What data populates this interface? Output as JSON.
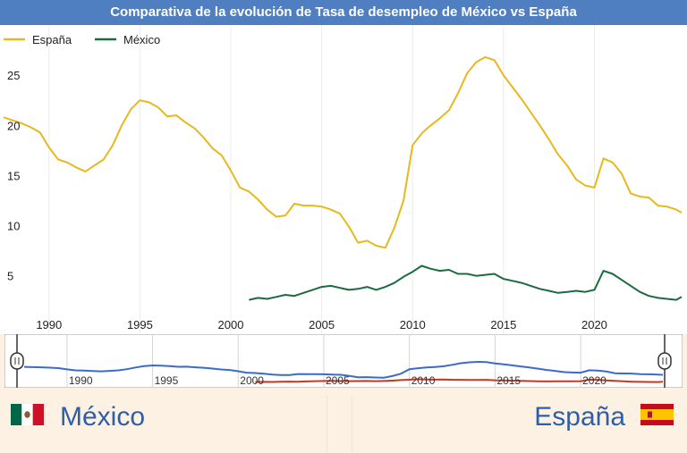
{
  "title": "Comparativa de la evolución de Tasa de desempleo de México vs España",
  "colors": {
    "spain": "#e6b91e",
    "mexico": "#1b6b3f",
    "nav_spain": "#3a6cc7",
    "nav_mexico": "#c8371f",
    "title_bg": "#4f7fc1",
    "name": "#2e5fa6"
  },
  "chart_data": {
    "type": "line",
    "title": "Comparativa de la evolución de Tasa de desempleo de México vs España",
    "xlabel": "",
    "ylabel": "",
    "xlim": [
      1987.5,
      2024.8
    ],
    "ylim": [
      1.5,
      30
    ],
    "x_ticks": [
      "1990",
      "1995",
      "2000",
      "2005",
      "2010",
      "2015",
      "2020"
    ],
    "y_ticks": [
      "5",
      "10",
      "15",
      "20",
      "25"
    ],
    "legend_position": "top-left",
    "grid": "vertical",
    "series": [
      {
        "name": "España",
        "points": [
          [
            1987.5,
            20.8
          ],
          [
            1988,
            20.5
          ],
          [
            1988.5,
            20.2
          ],
          [
            1989,
            19.8
          ],
          [
            1989.5,
            19.3
          ],
          [
            1990,
            17.8
          ],
          [
            1990.5,
            16.6
          ],
          [
            1991,
            16.3
          ],
          [
            1991.5,
            15.8
          ],
          [
            1992,
            15.4
          ],
          [
            1992.5,
            16.0
          ],
          [
            1993,
            16.6
          ],
          [
            1993.5,
            18.0
          ],
          [
            1994,
            20.0
          ],
          [
            1994.5,
            21.6
          ],
          [
            1995,
            22.5
          ],
          [
            1995.5,
            22.3
          ],
          [
            1996,
            21.8
          ],
          [
            1996.5,
            20.9
          ],
          [
            1997,
            21.0
          ],
          [
            1997.5,
            20.3
          ],
          [
            1998,
            19.7
          ],
          [
            1998.5,
            18.8
          ],
          [
            1999,
            17.7
          ],
          [
            1999.5,
            17.0
          ],
          [
            2000,
            15.5
          ],
          [
            2000.5,
            13.8
          ],
          [
            2001,
            13.4
          ],
          [
            2001.5,
            12.6
          ],
          [
            2002,
            11.6
          ],
          [
            2002.5,
            10.9
          ],
          [
            2003,
            11.0
          ],
          [
            2003.5,
            12.2
          ],
          [
            2004,
            12.0
          ],
          [
            2004.5,
            12.0
          ],
          [
            2005,
            11.9
          ],
          [
            2005.5,
            11.6
          ],
          [
            2006,
            11.2
          ],
          [
            2006.5,
            9.9
          ],
          [
            2007,
            8.3
          ],
          [
            2007.5,
            8.5
          ],
          [
            2008,
            8.0
          ],
          [
            2008.5,
            7.8
          ],
          [
            2009,
            9.8
          ],
          [
            2009.5,
            12.5
          ],
          [
            2010,
            18.0
          ],
          [
            2010.5,
            19.2
          ],
          [
            2011,
            20.0
          ],
          [
            2011.5,
            20.7
          ],
          [
            2012,
            21.5
          ],
          [
            2012.5,
            23.2
          ],
          [
            2013,
            25.2
          ],
          [
            2013.5,
            26.3
          ],
          [
            2014,
            26.8
          ],
          [
            2014.5,
            26.5
          ],
          [
            2015,
            25.0
          ],
          [
            2015.5,
            23.8
          ],
          [
            2016,
            22.6
          ],
          [
            2016.5,
            21.3
          ],
          [
            2017,
            20.0
          ],
          [
            2017.5,
            18.6
          ],
          [
            2018,
            17.1
          ],
          [
            2018.5,
            16.0
          ],
          [
            2019,
            14.6
          ],
          [
            2019.5,
            14.0
          ],
          [
            2020,
            13.8
          ],
          [
            2020.5,
            16.7
          ],
          [
            2021,
            16.3
          ],
          [
            2021.5,
            15.2
          ],
          [
            2022,
            13.2
          ],
          [
            2022.5,
            12.9
          ],
          [
            2023,
            12.8
          ],
          [
            2023.5,
            12.0
          ],
          [
            2024,
            11.9
          ],
          [
            2024.5,
            11.6
          ],
          [
            2024.8,
            11.3
          ]
        ]
      },
      {
        "name": "México",
        "points": [
          [
            2001,
            2.6
          ],
          [
            2001.5,
            2.8
          ],
          [
            2002,
            2.7
          ],
          [
            2002.5,
            2.9
          ],
          [
            2003,
            3.1
          ],
          [
            2003.5,
            3.0
          ],
          [
            2004,
            3.3
          ],
          [
            2004.5,
            3.6
          ],
          [
            2005,
            3.9
          ],
          [
            2005.5,
            4.0
          ],
          [
            2006,
            3.8
          ],
          [
            2006.5,
            3.6
          ],
          [
            2007,
            3.7
          ],
          [
            2007.5,
            3.9
          ],
          [
            2008,
            3.6
          ],
          [
            2008.5,
            3.9
          ],
          [
            2009,
            4.3
          ],
          [
            2009.5,
            4.9
          ],
          [
            2010,
            5.4
          ],
          [
            2010.5,
            6.0
          ],
          [
            2011,
            5.7
          ],
          [
            2011.5,
            5.5
          ],
          [
            2012,
            5.6
          ],
          [
            2012.5,
            5.2
          ],
          [
            2013,
            5.2
          ],
          [
            2013.5,
            5.0
          ],
          [
            2014,
            5.1
          ],
          [
            2014.5,
            5.2
          ],
          [
            2015,
            4.7
          ],
          [
            2015.5,
            4.5
          ],
          [
            2016,
            4.3
          ],
          [
            2016.5,
            4.0
          ],
          [
            2017,
            3.7
          ],
          [
            2017.5,
            3.5
          ],
          [
            2018,
            3.3
          ],
          [
            2018.5,
            3.4
          ],
          [
            2019,
            3.5
          ],
          [
            2019.5,
            3.4
          ],
          [
            2020,
            3.6
          ],
          [
            2020.5,
            5.5
          ],
          [
            2021,
            5.2
          ],
          [
            2021.5,
            4.6
          ],
          [
            2022,
            4.0
          ],
          [
            2022.5,
            3.4
          ],
          [
            2023,
            3.0
          ],
          [
            2023.5,
            2.8
          ],
          [
            2024,
            2.7
          ],
          [
            2024.5,
            2.6
          ],
          [
            2024.8,
            2.9
          ]
        ]
      }
    ],
    "navigator": {
      "x_ticks": [
        "1990",
        "1995",
        "2000",
        "2005",
        "2010",
        "2015",
        "2020"
      ]
    }
  },
  "cards": {
    "mexico": {
      "name": "México",
      "flag_icon": "mexico-flag-icon"
    },
    "spain": {
      "name": "España",
      "flag_icon": "spain-flag-icon"
    }
  }
}
